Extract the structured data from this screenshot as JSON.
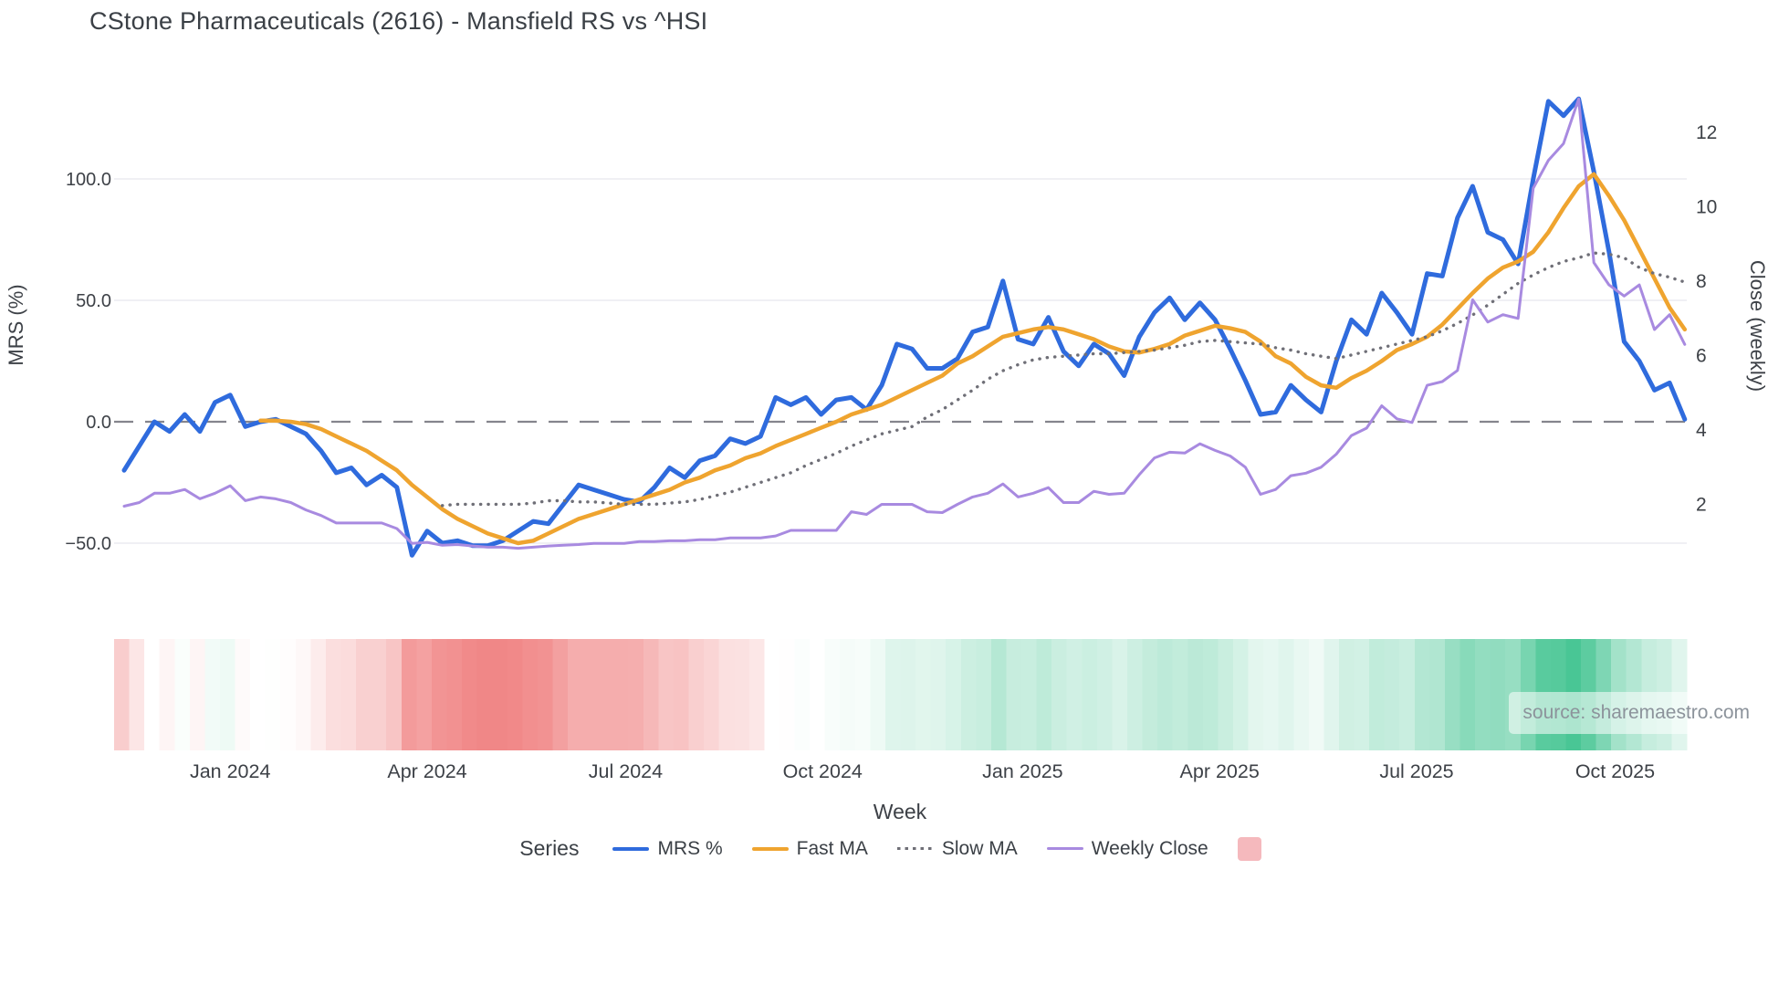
{
  "title": "CStone Pharmaceuticals (2616) - Mansfield RS vs ^HSI",
  "source_note": "source: sharemaestro.com",
  "legend": {
    "title": "Series",
    "items": [
      {
        "label": "MRS %",
        "color": "#2f6bdd",
        "style": "solid"
      },
      {
        "label": "Fast MA",
        "color": "#efa42f",
        "style": "solid"
      },
      {
        "label": "Slow MA",
        "color": "#6f6f77",
        "style": "dotted"
      },
      {
        "label": "Weekly Close",
        "color": "#a88ae0",
        "style": "solid"
      },
      {
        "label": "",
        "color": "#f5b9bd",
        "style": "swatch"
      }
    ]
  },
  "chart_data": {
    "type": "line",
    "title": "CStone Pharmaceuticals (2616) - Mansfield RS vs ^HSI",
    "xlabel": "Week",
    "ylabel_left": "MRS (%)",
    "ylabel_right": "Close (weekly)",
    "grid": "horizontal-only",
    "legend_position": "bottom-center",
    "x_axis": {
      "unit": "weeks",
      "n_points": 104,
      "ticks": [
        {
          "label": "Jan 2024",
          "week": 7
        },
        {
          "label": "Apr 2024",
          "week": 20
        },
        {
          "label": "Jul 2024",
          "week": 33.1
        },
        {
          "label": "Oct 2024",
          "week": 46.1
        },
        {
          "label": "Jan 2025",
          "week": 59.3
        },
        {
          "label": "Apr 2025",
          "week": 72.3
        },
        {
          "label": "Jul 2025",
          "week": 85.3
        },
        {
          "label": "Oct 2025",
          "week": 98.4
        }
      ]
    },
    "y_axis_left": {
      "label": "MRS (%)",
      "ticks": [
        {
          "label": "100.0",
          "value": 100
        },
        {
          "label": "50.0",
          "value": 50
        },
        {
          "label": "0.0",
          "value": 0
        },
        {
          "label": "−50.0",
          "value": -50
        }
      ],
      "zero_line": "dashed",
      "approx_range": [
        -62,
        140
      ]
    },
    "y_axis_right": {
      "label": "Close (weekly)",
      "ticks": [
        {
          "label": "12",
          "value": 12
        },
        {
          "label": "10",
          "value": 10
        },
        {
          "label": "8",
          "value": 8
        },
        {
          "label": "6",
          "value": 6
        },
        {
          "label": "4",
          "value": 4
        },
        {
          "label": "2",
          "value": 2
        }
      ],
      "approx_range": [
        0.3,
        13.8
      ]
    },
    "series": [
      {
        "name": "MRS %",
        "axis": "left",
        "color": "#2f6bdd",
        "width": 5,
        "dash": "solid",
        "values": [
          -20,
          -10,
          0,
          -4,
          3,
          -4,
          8,
          11,
          -2,
          0,
          1,
          -2,
          -5,
          -12,
          -21,
          -19,
          -26,
          -22,
          -27,
          -55,
          -45,
          -50,
          -49,
          -51,
          -51,
          -49,
          -45,
          -41,
          -42,
          -34,
          -26,
          -28,
          -30,
          -32,
          -33,
          -27,
          -19,
          -23,
          -16,
          -14,
          -7,
          -9,
          -6,
          10,
          7,
          10,
          3,
          9,
          10,
          5,
          15,
          32,
          30,
          22,
          22,
          26,
          37,
          39,
          58,
          34,
          32,
          43,
          29,
          23,
          32,
          28,
          19,
          35,
          45,
          51,
          42,
          49,
          42,
          30,
          17,
          3,
          4,
          15,
          9,
          4,
          25,
          42,
          36,
          53,
          45,
          36,
          61,
          60,
          84,
          97,
          78,
          75,
          65,
          100,
          132,
          126,
          133,
          103,
          70,
          33,
          25,
          13,
          16,
          1
        ]
      },
      {
        "name": "Fast MA",
        "axis": "left",
        "color": "#efa42f",
        "width": 4.5,
        "dash": "solid",
        "values": [
          null,
          null,
          null,
          null,
          null,
          null,
          null,
          null,
          null,
          0.5,
          0.5,
          0,
          -1,
          -3,
          -6,
          -9,
          -12,
          -16,
          -20,
          -26,
          -31,
          -36,
          -40,
          -43,
          -46,
          -48,
          -50,
          -49,
          -46,
          -43,
          -40,
          -38,
          -36,
          -34,
          -32,
          -30,
          -28,
          -25,
          -23,
          -20,
          -18,
          -15,
          -13,
          -10,
          -7.5,
          -5,
          -2.5,
          0,
          3,
          5,
          7,
          10,
          13,
          16,
          19,
          24,
          27,
          31,
          35,
          36.5,
          38,
          39,
          38,
          36,
          34,
          31,
          29,
          28.5,
          30,
          32,
          35.5,
          37.5,
          39.5,
          38.5,
          37,
          33,
          27,
          24,
          18.5,
          15,
          14,
          18,
          21,
          25,
          29.5,
          32,
          35,
          40,
          46.5,
          53,
          59,
          63.5,
          66,
          70,
          78,
          88,
          97,
          102,
          93,
          83,
          71,
          59,
          47,
          38
        ]
      },
      {
        "name": "Slow MA",
        "axis": "left",
        "color": "#6f6f77",
        "width": 3.4,
        "dash": "dotted",
        "values": [
          null,
          null,
          null,
          null,
          null,
          null,
          null,
          null,
          null,
          null,
          null,
          null,
          null,
          null,
          null,
          null,
          null,
          null,
          null,
          null,
          null,
          -34.5,
          -34,
          -34,
          -34,
          -34,
          -34,
          -33.5,
          -32.5,
          -32.5,
          -33,
          -33,
          -33.5,
          -34,
          -34,
          -34,
          -33.5,
          -33,
          -32,
          -30.5,
          -29,
          -27,
          -25,
          -23,
          -21,
          -18,
          -15.5,
          -13,
          -10,
          -7.5,
          -5,
          -3.5,
          -2,
          2,
          5,
          9,
          13,
          17.5,
          21,
          23.5,
          25.5,
          26.5,
          27,
          27.5,
          28,
          28,
          28.5,
          29,
          29.5,
          30.5,
          31.5,
          33,
          33.5,
          33,
          32.5,
          32,
          30.5,
          29.5,
          28,
          27,
          26,
          27.5,
          29,
          30.5,
          32,
          33.5,
          35,
          37.5,
          40.5,
          44,
          48,
          52.5,
          57,
          60.5,
          63.5,
          66,
          67.5,
          69.5,
          69,
          67.5,
          63.5,
          61,
          59.5,
          57.5
        ]
      },
      {
        "name": "Weekly Close",
        "axis": "right",
        "color": "#a88ae0",
        "width": 3,
        "dash": "solid",
        "values": [
          1.95,
          2.05,
          2.3,
          2.3,
          2.4,
          2.15,
          2.3,
          2.5,
          2.1,
          2.2,
          2.15,
          2.05,
          1.85,
          1.7,
          1.5,
          1.5,
          1.5,
          1.5,
          1.35,
          0.95,
          0.98,
          0.9,
          0.92,
          0.88,
          0.85,
          0.85,
          0.82,
          0.85,
          0.88,
          0.9,
          0.92,
          0.95,
          0.95,
          0.95,
          1.0,
          1.0,
          1.02,
          1.02,
          1.05,
          1.05,
          1.1,
          1.1,
          1.1,
          1.15,
          1.3,
          1.3,
          1.3,
          1.3,
          1.8,
          1.73,
          2.0,
          2.0,
          2.0,
          1.8,
          1.78,
          2.0,
          2.2,
          2.3,
          2.55,
          2.2,
          2.3,
          2.45,
          2.05,
          2.05,
          2.35,
          2.27,
          2.3,
          2.8,
          3.25,
          3.4,
          3.38,
          3.63,
          3.45,
          3.3,
          3.0,
          2.27,
          2.4,
          2.77,
          2.84,
          3.0,
          3.35,
          3.85,
          4.05,
          4.65,
          4.3,
          4.2,
          5.2,
          5.3,
          5.6,
          7.5,
          6.9,
          7.1,
          7.0,
          10.5,
          11.25,
          11.7,
          12.9,
          8.5,
          7.9,
          7.6,
          7.9,
          6.7,
          7.1,
          6.3
        ]
      }
    ],
    "heatmap": {
      "description": "weekly strength strip below plot, one cell per week, red negative to green positive",
      "based_on": "MRS % (smoothed with Fast MA where available)",
      "neg_color": "#f08383",
      "pos_color": "#2ebd85",
      "neutral_color": "#ffffff",
      "neg_saturation_at": 50,
      "pos_saturation_at": 132
    }
  }
}
